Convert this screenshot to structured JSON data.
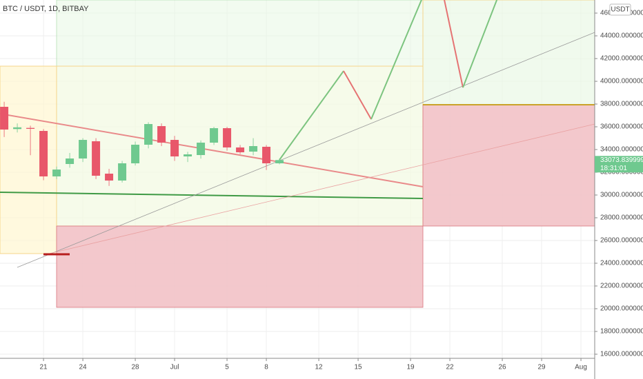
{
  "chart_data": {
    "type": "candlestick",
    "title": "BTC / USDT, 1D, BITBAY",
    "currency": "USDT",
    "x": [
      -3,
      -2,
      -1,
      0,
      1,
      2,
      3,
      4,
      5,
      6,
      7,
      8,
      9,
      10,
      11,
      12,
      13,
      14,
      15,
      16,
      17,
      18
    ],
    "open": [
      37758,
      35800,
      35900,
      35636,
      31636,
      32727,
      33212,
      34727,
      31879,
      31273,
      32788,
      34424,
      36061,
      34848,
      33394,
      33515,
      34606,
      35879,
      34182,
      33818,
      34242,
      32788
    ],
    "high": [
      38200,
      36300,
      36100,
      35800,
      32500,
      33700,
      35000,
      35000,
      32300,
      33000,
      34700,
      36400,
      36300,
      35200,
      33800,
      34800,
      36000,
      36000,
      34400,
      35000,
      34400,
      33200
    ],
    "low": [
      35100,
      35500,
      33500,
      31300,
      31400,
      32400,
      32900,
      31400,
      30800,
      31100,
      32600,
      34100,
      34300,
      33000,
      32900,
      33200,
      34400,
      33900,
      33600,
      33500,
      32200,
      32700
    ],
    "close": [
      35758,
      35950,
      35820,
      31636,
      32242,
      33212,
      34848,
      31697,
      31273,
      32788,
      34424,
      36242,
      34606,
      33394,
      33576,
      34606,
      35879,
      34182,
      33758,
      34303,
      32788,
      33073.839999
    ],
    "up_color": "#6fc98f",
    "down_color": "#e8576a",
    "last_price": 33073.839999,
    "countdown": "18:31:01",
    "xlim": [
      -3.32,
      42.05
    ],
    "xticks": [
      {
        "value": 0,
        "label": "21"
      },
      {
        "value": 3,
        "label": "24"
      },
      {
        "value": 7,
        "label": "28"
      },
      {
        "value": 10,
        "label": "Jul"
      },
      {
        "value": 14,
        "label": "5"
      },
      {
        "value": 17,
        "label": "8"
      },
      {
        "value": 21,
        "label": "12"
      },
      {
        "value": 24,
        "label": "15"
      },
      {
        "value": 28,
        "label": "19"
      },
      {
        "value": 31,
        "label": "22"
      },
      {
        "value": 35,
        "label": "26"
      },
      {
        "value": 38,
        "label": "29"
      },
      {
        "value": 41,
        "label": "Aug"
      }
    ],
    "ylim": [
      15636,
      47152
    ],
    "yticks": [
      {
        "value": 16000,
        "label": "16000.000000"
      },
      {
        "value": 18000,
        "label": "18000.000000"
      },
      {
        "value": 20000,
        "label": "20000.000000"
      },
      {
        "value": 22000,
        "label": "22000.000000"
      },
      {
        "value": 24000,
        "label": "24000.000000"
      },
      {
        "value": 26000,
        "label": "26000.000000"
      },
      {
        "value": 28000,
        "label": "28000.000000"
      },
      {
        "value": 30000,
        "label": "30000.000000"
      },
      {
        "value": 32000,
        "label": "32000.000000"
      },
      {
        "value": 34000,
        "label": "34000.000000"
      },
      {
        "value": 36000,
        "label": "36000.000000"
      },
      {
        "value": 38000,
        "label": "38000.000000"
      },
      {
        "value": 40000,
        "label": "40000.000000"
      },
      {
        "value": 42000,
        "label": "42000.000000"
      },
      {
        "value": 44000,
        "label": "44000.000000"
      },
      {
        "value": 46000,
        "label": "46000.000000"
      }
    ],
    "grid": true
  }
}
